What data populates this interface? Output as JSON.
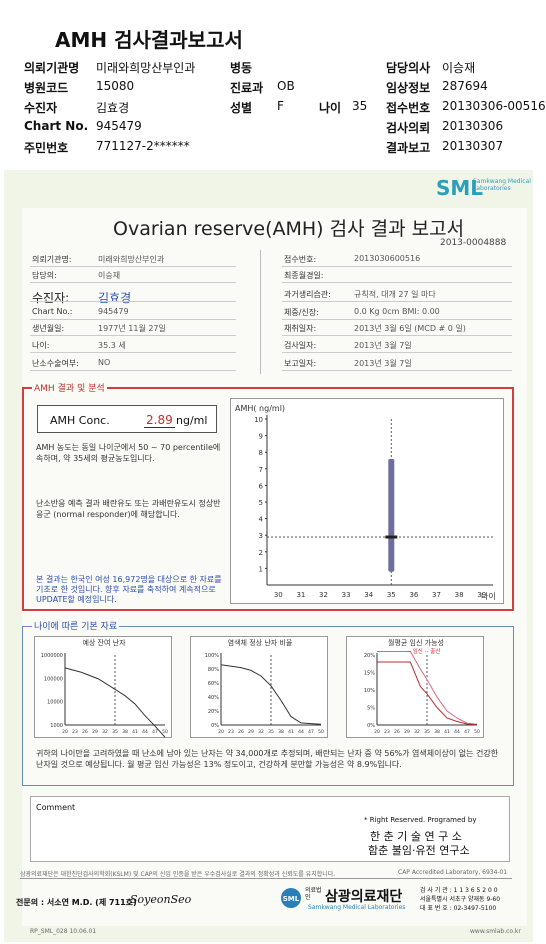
{
  "header": {
    "title": "AMH 검사결과보고서",
    "rows": [
      {
        "l1": "의뢰기관명",
        "v1": "미래와희망산부인과",
        "l2": "병동",
        "v2": "",
        "l3": "",
        "v3": "",
        "l4": "담당의사",
        "v4": "이승재"
      },
      {
        "l1": "병원코드",
        "v1": "15080",
        "l2": "진료과",
        "v2": "OB",
        "l3": "",
        "v3": "",
        "l4": "임상정보",
        "v4": "287694"
      },
      {
        "l1": "수진자",
        "v1": "김효경",
        "l2": "성별",
        "v2": "F",
        "l3": "나이",
        "v3": "35",
        "l4": "접수번호",
        "v4": "20130306-00516"
      },
      {
        "l1": "Chart No.",
        "v1": "945479",
        "l2": "",
        "v2": "",
        "l3": "",
        "v3": "",
        "l4": "검사의뢰",
        "v4": "20130306"
      },
      {
        "l1": "주민번호",
        "v1": "771127-2******",
        "l2": "",
        "v2": "",
        "l3": "",
        "v3": "",
        "l4": "결과보고",
        "v4": "20130307"
      }
    ]
  },
  "report": {
    "logo": "SML",
    "logo_sub": "Samkwang Medical Laboratories",
    "title": "Ovarian reserve(AMH) 검사 결과 보고서",
    "doc_no": "2013-0004888",
    "left": [
      {
        "label": "의뢰기관명:",
        "value": "미래와희망산부인과"
      },
      {
        "label": "담당의:",
        "value": "이승재"
      },
      {
        "label": "수진자:",
        "value": "김효경"
      },
      {
        "label": "Chart No.:",
        "value": "945479"
      },
      {
        "label": "생년월일:",
        "value": "1977년 11월 27일"
      },
      {
        "label": "나이:",
        "value": "35.3 세"
      },
      {
        "label": "난소수술여부:",
        "value": "NO"
      }
    ],
    "right": [
      {
        "label": "접수번호:",
        "value": "2013030600516"
      },
      {
        "label": "최종월경일:",
        "value": ""
      },
      {
        "label": "과거생리습관:",
        "value": "규칙적,  대개   27 일 마다"
      },
      {
        "label": "체중/신장:",
        "value": "0.0  Kg       0cm    BMI:    0.00"
      },
      {
        "label": "채취일자:",
        "value": "2013년 3월 6일    (MCD # 0 일)"
      },
      {
        "label": "검사일자:",
        "value": "2013년 3월 7일"
      },
      {
        "label": "보고일자:",
        "value": "2013년 3월 7일"
      }
    ],
    "amh_section": "AMH 결과 및 분석",
    "conc_label": "AMH Conc.",
    "conc_value": "2.89",
    "conc_unit": "ng/ml",
    "para1": "AMH 농도는 동일 나이군에서  50 ~ 70 percentile에 속하며, 약  35세의 평균농도입니다.",
    "para2": "난소반응 예측 결과 배란유도 또는 과배란유도시 정상반응군 (normal responder)에 해당합니다.",
    "para3": "본 결과는 한국인 여성 16,972명을 대상으로 한 자료를 기초로 한 것입니다. 향후 자료를 축적하여 계속적으로 UPDATE할 예정입니다.",
    "age_section": "나이에 따른 기본 자료",
    "mini_titles": [
      "예상 잔여 난자",
      "염색체 정상 난자 비율",
      "월평균 임신 가능성"
    ],
    "mini3_legend": "-- 임신  -- 출산",
    "summary": "귀하의 나이만을 고려하였을 때 난소에 남아 있는 난자는 약  34,000개로 추정되며, 배란되는 난자 중 약  56%가 염색체이상이 없는 건강한 난자일 것으로 예상됩니다. 월 평균 임신 가능성은  13% 정도이고, 건강하게 분만할 가능성은 약  8.9%입니다.",
    "comment_label": "Comment",
    "rights": "* Right Reserved. Programed by",
    "inst1": "한 춘  기 술  연 구 소",
    "inst2": "함춘 불임·유전 연구소",
    "foot_small": "삼광의료재단은 대한진단검사의학회(KSLM) 및 CAP의 신임 인증을 받은 우수검사실로 결과의 정확성과 신뢰도를 유지합니다.",
    "cap": "CAP Accredited Laboratory, 6934-01",
    "doctor": "전문의 : 서소연 M.D. (제 711호)",
    "signature": "SoyeonSeo",
    "company": "삼광의료재단",
    "company_prefix": "의료법인",
    "company_en": "Samkwang Medical Laboratories",
    "contact": [
      "검 사 기 관 : 1 1 3 6 5 2 0 0",
      "서울특별시 서초구 양재동 9-60",
      "대 표 번 호 : 02-3497-5100"
    ],
    "form_no": "RP_SML_028  10.06.01",
    "website": "www.smlab.co.kr"
  },
  "chart_data": [
    {
      "type": "scatter",
      "title": "",
      "ylabel": "AMH( ng/ml)",
      "xlabel": "나이",
      "x_ticks": [
        30,
        31,
        32,
        33,
        34,
        35,
        36,
        37,
        38,
        39
      ],
      "y_ticks": [
        1,
        2,
        3,
        4,
        5,
        6,
        7,
        8,
        9,
        10
      ],
      "xlim": [
        29.5,
        39.5
      ],
      "ylim": [
        0,
        10
      ],
      "point": {
        "x": 35,
        "y": 2.89
      },
      "range": {
        "x": 35,
        "low": 0.8,
        "high": 7.6
      },
      "reference_lines": {
        "x": 35,
        "y": 2.89
      }
    },
    {
      "type": "line",
      "title": "예상 잔여 난자",
      "y_ticks": [
        1000,
        10000,
        100000,
        1000000
      ],
      "log_y": true,
      "x_ticks": [
        20,
        23,
        26,
        29,
        32,
        35,
        38,
        41,
        44,
        47,
        50
      ],
      "marker_x": 35,
      "x": [
        20,
        25,
        30,
        35,
        38,
        41,
        44,
        47,
        50
      ],
      "y": [
        280000,
        180000,
        95000,
        34000,
        18000,
        8000,
        2500,
        900,
        300
      ]
    },
    {
      "type": "line",
      "title": "염색체 정상 난자 비율",
      "y_ticks": [
        "0%",
        "20%",
        "40%",
        "60%",
        "80%",
        "100%"
      ],
      "x_ticks": [
        20,
        23,
        26,
        29,
        32,
        35,
        38,
        41,
        44,
        47,
        50
      ],
      "marker_x": 35,
      "x": [
        20,
        26,
        29,
        32,
        35,
        38,
        41,
        44,
        47,
        50
      ],
      "y": [
        86,
        82,
        78,
        70,
        56,
        35,
        12,
        3,
        2,
        1
      ]
    },
    {
      "type": "line",
      "title": "월평균 임신 가능성",
      "y_ticks": [
        "0%",
        "5%",
        "10%",
        "15%",
        "20%"
      ],
      "x_ticks": [
        20,
        23,
        26,
        29,
        32,
        35,
        38,
        41,
        44,
        47,
        50
      ],
      "marker_x": 35,
      "series": [
        {
          "name": "임신",
          "x": [
            20,
            30,
            33,
            35,
            38,
            41,
            44,
            47,
            50
          ],
          "y": [
            21,
            21,
            16,
            13,
            8,
            4,
            2,
            0.5,
            0.2
          ]
        },
        {
          "name": "출산",
          "x": [
            20,
            30,
            33,
            35,
            38,
            41,
            44,
            47,
            50
          ],
          "y": [
            18,
            18,
            11,
            8.9,
            5,
            2,
            1,
            0.3,
            0.1
          ]
        }
      ]
    }
  ]
}
